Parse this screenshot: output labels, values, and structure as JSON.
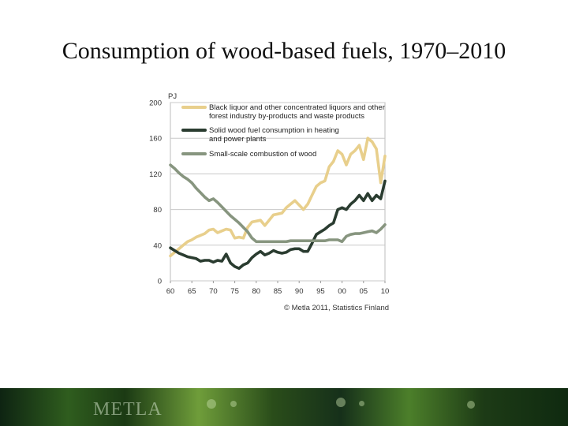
{
  "slide": {
    "title": "Consumption of wood-based fuels, 1970–2010",
    "footer_logo": "METLA"
  },
  "chart_data": {
    "type": "line",
    "title": "",
    "xlabel": "",
    "ylabel": "PJ",
    "xlim": [
      1960,
      2010
    ],
    "ylim": [
      0,
      200
    ],
    "xticks": [
      60,
      65,
      70,
      75,
      80,
      85,
      90,
      95,
      "00",
      "05",
      10
    ],
    "yticks": [
      0,
      40,
      80,
      120,
      160,
      200
    ],
    "grid": "horizontal",
    "legend_position": "top-right",
    "source": "© Metla 2011, Statistics Finland",
    "x": [
      1960,
      1961,
      1962,
      1963,
      1964,
      1965,
      1966,
      1967,
      1968,
      1969,
      1970,
      1971,
      1972,
      1973,
      1974,
      1975,
      1976,
      1977,
      1978,
      1979,
      1980,
      1981,
      1982,
      1983,
      1984,
      1985,
      1986,
      1987,
      1988,
      1989,
      1990,
      1991,
      1992,
      1993,
      1994,
      1995,
      1996,
      1997,
      1998,
      1999,
      2000,
      2001,
      2002,
      2003,
      2004,
      2005,
      2006,
      2007,
      2008,
      2009,
      2010
    ],
    "series": [
      {
        "name": "Black liquor and other concentrated liquors and other forest industry by-products and waste products",
        "color": "#e8cf8c",
        "values": [
          28,
          32,
          36,
          40,
          44,
          46,
          49,
          51,
          53,
          57,
          58,
          54,
          56,
          58,
          57,
          48,
          49,
          48,
          60,
          66,
          67,
          68,
          62,
          68,
          74,
          75,
          76,
          82,
          86,
          90,
          85,
          80,
          86,
          96,
          106,
          110,
          112,
          128,
          134,
          146,
          142,
          130,
          142,
          146,
          152,
          136,
          160,
          156,
          148,
          110,
          140
        ]
      },
      {
        "name": "Solid wood fuel consumption in heating and power plants",
        "color": "#2a3c30",
        "values": [
          37,
          34,
          31,
          29,
          27,
          26,
          25,
          22,
          23,
          23,
          21,
          23,
          22,
          30,
          20,
          16,
          14,
          18,
          20,
          26,
          30,
          33,
          29,
          31,
          34,
          32,
          31,
          32,
          35,
          36,
          36,
          33,
          33,
          42,
          52,
          55,
          58,
          62,
          65,
          80,
          82,
          80,
          86,
          90,
          96,
          90,
          98,
          90,
          96,
          92,
          112
        ]
      },
      {
        "name": "Small-scale combustion of wood",
        "color": "#87957f",
        "values": [
          130,
          126,
          121,
          117,
          114,
          110,
          104,
          99,
          94,
          90,
          92,
          88,
          83,
          78,
          73,
          69,
          65,
          60,
          55,
          48,
          44,
          44,
          44,
          44,
          44,
          44,
          44,
          44,
          45,
          45,
          45,
          45,
          45,
          45,
          45,
          45,
          45,
          46,
          46,
          46,
          44,
          50,
          52,
          53,
          53,
          54,
          55,
          56,
          54,
          58,
          63
        ]
      }
    ]
  }
}
